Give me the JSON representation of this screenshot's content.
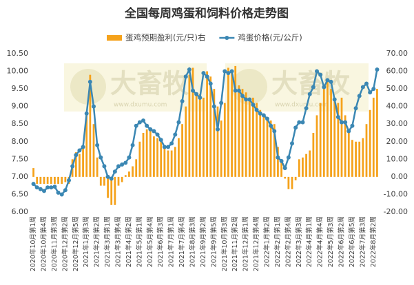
{
  "chart_data": {
    "type": "bar-line",
    "title": "全国每周鸡蛋和饲料价格走势图",
    "watermark": {
      "brand": "大畜牧",
      "url": "www.dxumu.com"
    },
    "categories": [
      "2020年10月第1周",
      null,
      null,
      "2020年10月第4周",
      null,
      null,
      "2020年11月第3周",
      null,
      null,
      "2020年12月第2周",
      null,
      null,
      "2020年12月第5周",
      null,
      null,
      "2021年1月第3周",
      null,
      null,
      "2021年2月第2周",
      null,
      null,
      "2021年3月第1周",
      null,
      null,
      "2021年3月第4周",
      null,
      null,
      "2021年4月第2周",
      null,
      null,
      "2021年5月第1周",
      null,
      null,
      "2021年5月第4周",
      null,
      null,
      "2021年6月第3周",
      null,
      null,
      "2021年7月第1周",
      null,
      null,
      "2021年7月第4周",
      null,
      null,
      "2021年8月第3周",
      null,
      null,
      "2021年9月第2周",
      null,
      null,
      "2021年9月第5周",
      null,
      null,
      "2021年10月第3周",
      null,
      null,
      "2021年11月第2周",
      null,
      null,
      "2021年12月第1周",
      null,
      null,
      "2021年12月第4周",
      null,
      null,
      "2022年1月第2周",
      null,
      null,
      "2022年2月第1周",
      null,
      null,
      "2022年2月第4周",
      null,
      null,
      "2022年3月第3周",
      null,
      null,
      "2022年4月第1周",
      null,
      null,
      "2022年4月第4周",
      null,
      null,
      "2022年5月第3周",
      null,
      null,
      "2022年6月第2周",
      null,
      null,
      "2022年6月第5周",
      null,
      null,
      "2022年7月第3周",
      null,
      null,
      "2022年8月第2周",
      null
    ],
    "series": [
      {
        "name": "蛋鸡预期盈利(元/只)右",
        "type": "bar",
        "axis": "y2",
        "color": "#f5a21b",
        "values": [
          5,
          -4,
          -4,
          -4,
          -4,
          -4,
          -4,
          -4,
          -4,
          -3,
          -4,
          10,
          14,
          13,
          17,
          35,
          58,
          30,
          11,
          -5,
          -5,
          -12,
          -16,
          -16,
          -5,
          -3,
          1,
          3,
          6,
          10,
          20,
          25,
          27,
          26,
          23,
          22,
          20,
          18,
          15,
          15,
          17,
          22,
          30,
          40,
          58,
          62,
          48,
          47,
          45,
          60,
          57,
          50,
          40,
          32,
          42,
          62,
          60,
          63,
          52,
          50,
          48,
          45,
          45,
          42,
          38,
          35,
          33,
          32,
          30,
          17,
          8,
          -1,
          -7,
          -7,
          -2,
          10,
          11,
          13,
          15,
          25,
          35,
          42,
          50,
          55,
          50,
          45,
          42,
          45,
          35,
          25,
          21,
          20,
          20,
          22,
          30,
          38,
          45,
          50
        ]
      },
      {
        "name": "鸡蛋价格(元/公斤)",
        "type": "line",
        "axis": "y",
        "color": "#3b87b3",
        "values": [
          6.8,
          6.7,
          6.65,
          6.6,
          6.7,
          6.7,
          6.72,
          6.55,
          6.5,
          6.62,
          6.9,
          7.3,
          7.62,
          7.75,
          7.85,
          8.8,
          9.7,
          9.0,
          7.9,
          7.55,
          7.3,
          7.0,
          6.95,
          7.15,
          7.3,
          7.35,
          7.4,
          7.55,
          7.9,
          8.45,
          8.55,
          8.6,
          8.45,
          8.35,
          8.3,
          8.2,
          8.05,
          7.85,
          7.85,
          7.95,
          8.2,
          8.55,
          9.15,
          9.85,
          10.05,
          9.45,
          9.35,
          9.25,
          9.95,
          9.85,
          9.65,
          9.0,
          8.35,
          9.1,
          10.0,
          9.95,
          10.0,
          9.45,
          9.45,
          9.3,
          9.2,
          9.2,
          9.05,
          8.9,
          8.8,
          8.75,
          8.65,
          8.45,
          8.3,
          7.55,
          7.45,
          7.25,
          7.55,
          7.95,
          8.4,
          8.55,
          8.55,
          8.95,
          9.35,
          9.55,
          10.0,
          9.9,
          9.55,
          9.75,
          9.7,
          9.2,
          8.7,
          8.55,
          8.55,
          8.3,
          8.45,
          8.95,
          9.3,
          9.55,
          9.65,
          9.4,
          9.5,
          10.05
        ]
      }
    ],
    "ylim": [
      6,
      10.5
    ],
    "yticks": [
      {
        "value": 6,
        "label": "6.00"
      },
      {
        "value": 6.5,
        "label": "6.50"
      },
      {
        "value": 7,
        "label": "7.00"
      },
      {
        "value": 7.5,
        "label": "7.50"
      },
      {
        "value": 8,
        "label": "8.00"
      },
      {
        "value": 8.5,
        "label": "8.50"
      },
      {
        "value": 9,
        "label": "9.00"
      },
      {
        "value": 9.5,
        "label": "9.50"
      },
      {
        "value": 10,
        "label": "10.00"
      },
      {
        "value": 10.5,
        "label": "10.50"
      }
    ],
    "y2lim": [
      -20,
      70
    ],
    "y2ticks": [
      {
        "value": -20,
        "label": "-20.00"
      },
      {
        "value": -10,
        "label": "-10.00"
      },
      {
        "value": 0,
        "label": "0.00"
      },
      {
        "value": 10,
        "label": "10.00"
      },
      {
        "value": 20,
        "label": "20.00"
      },
      {
        "value": 30,
        "label": "30.00"
      },
      {
        "value": 40,
        "label": "40.00"
      },
      {
        "value": 50,
        "label": "50.00"
      },
      {
        "value": 60,
        "label": "60.00"
      },
      {
        "value": 70,
        "label": "70.00"
      }
    ],
    "grid": false,
    "legend": "top"
  }
}
